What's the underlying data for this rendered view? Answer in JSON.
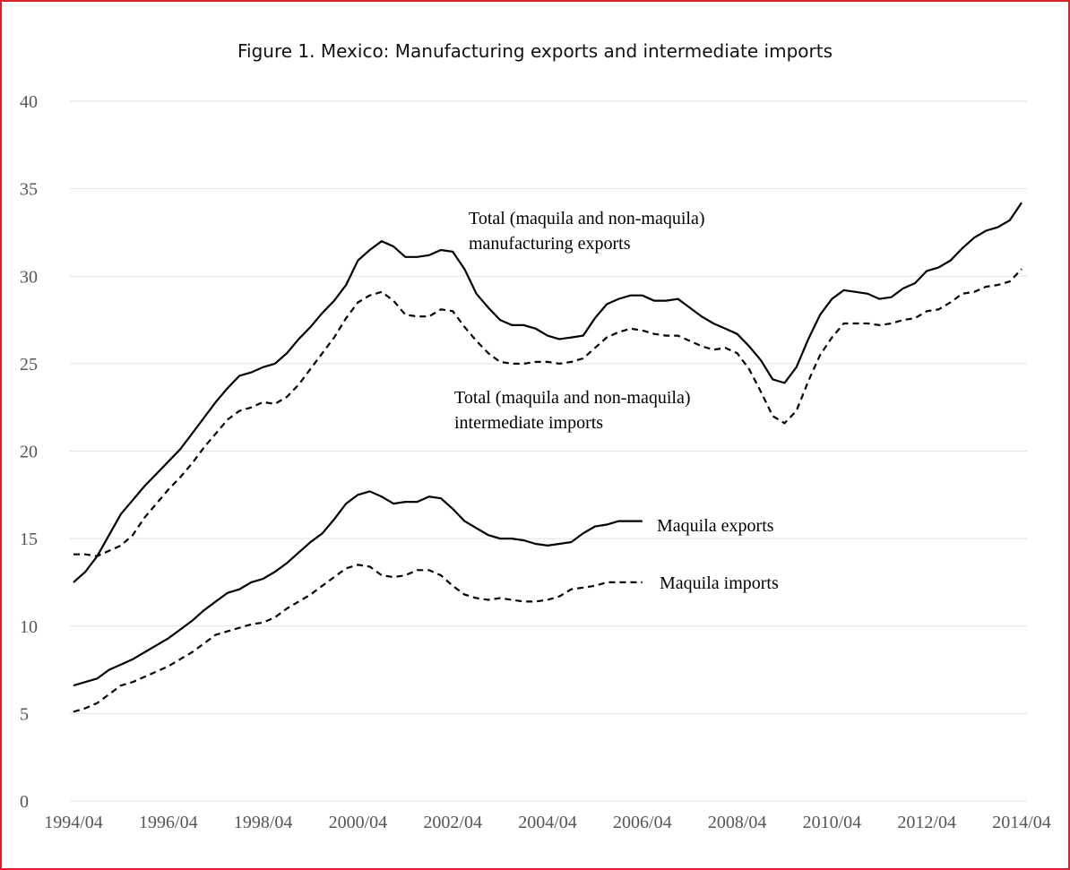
{
  "chart_data": {
    "type": "line",
    "title": "Figure 1. Mexico: Manufacturing exports and intermediate imports",
    "categories": [
      "1994/04",
      null,
      null,
      null,
      null,
      null,
      null,
      null,
      "1996/04",
      null,
      null,
      null,
      null,
      null,
      null,
      null,
      "1998/04",
      null,
      null,
      null,
      null,
      null,
      null,
      null,
      "2000/04",
      null,
      null,
      null,
      null,
      null,
      null,
      null,
      "2002/04",
      null,
      null,
      null,
      null,
      null,
      null,
      null,
      "2004/04",
      null,
      null,
      null,
      null,
      null,
      null,
      null,
      "2006/04",
      null,
      null,
      null,
      null,
      null,
      null,
      null,
      "2008/04",
      null,
      null,
      null,
      null,
      null,
      null,
      null,
      "2010/04",
      null,
      null,
      null,
      null,
      null,
      null,
      null,
      "2012/04",
      null,
      null,
      null,
      null,
      null,
      null,
      null,
      "2014/04"
    ],
    "ylim": [
      0,
      40
    ],
    "yticks": [
      0,
      5,
      10,
      15,
      20,
      25,
      30,
      35,
      40
    ],
    "grid": true,
    "series": [
      {
        "label": [
          "Total (maquila and non-maquila)",
          "manufacturing exports"
        ],
        "color": "#000000",
        "style": "solid",
        "values": [
          12.5,
          13.1,
          14.0,
          15.2,
          16.4,
          17.2,
          18.0,
          18.7,
          19.4,
          20.1,
          21.0,
          21.9,
          22.8,
          23.6,
          24.3,
          24.5,
          24.8,
          25.0,
          25.6,
          26.4,
          27.1,
          27.9,
          28.6,
          29.5,
          30.9,
          31.5,
          32.0,
          31.7,
          31.1,
          31.1,
          31.2,
          31.5,
          31.4,
          30.4,
          29.0,
          28.2,
          27.5,
          27.2,
          27.2,
          27.0,
          26.6,
          26.4,
          26.5,
          26.6,
          27.6,
          28.4,
          28.7,
          28.9,
          28.9,
          28.6,
          28.6,
          28.7,
          28.2,
          27.7,
          27.3,
          27.0,
          26.7,
          26.0,
          25.2,
          24.1,
          23.9,
          24.8,
          26.4,
          27.8,
          28.7,
          29.2,
          29.1,
          29.0,
          28.7,
          28.8,
          29.3,
          29.6,
          30.3,
          30.5,
          30.9,
          31.6,
          32.2,
          32.6,
          32.8,
          33.2,
          34.2
        ]
      },
      {
        "label": [
          "Total (maquila and non-maquila)",
          "intermediate imports"
        ],
        "color": "#000000",
        "style": "dashed",
        "values": [
          14.1,
          14.1,
          14.0,
          14.3,
          14.6,
          15.2,
          16.2,
          17.0,
          17.8,
          18.5,
          19.3,
          20.2,
          21.0,
          21.8,
          22.3,
          22.5,
          22.8,
          22.7,
          23.1,
          23.8,
          24.7,
          25.6,
          26.5,
          27.6,
          28.5,
          28.9,
          29.1,
          28.6,
          27.8,
          27.7,
          27.7,
          28.1,
          28.0,
          27.1,
          26.3,
          25.6,
          25.1,
          25.0,
          25.0,
          25.1,
          25.1,
          25.0,
          25.1,
          25.3,
          25.9,
          26.5,
          26.8,
          27.0,
          26.9,
          26.7,
          26.6,
          26.6,
          26.3,
          26.0,
          25.8,
          25.9,
          25.6,
          24.7,
          23.4,
          22.0,
          21.6,
          22.3,
          24.0,
          25.5,
          26.5,
          27.3,
          27.3,
          27.3,
          27.2,
          27.3,
          27.5,
          27.6,
          28.0,
          28.1,
          28.5,
          29.0,
          29.1,
          29.4,
          29.5,
          29.7,
          30.4
        ]
      },
      {
        "label": [
          "Maquila exports"
        ],
        "color": "#000000",
        "style": "solid",
        "values": [
          6.6,
          6.8,
          7.0,
          7.5,
          7.8,
          8.1,
          8.5,
          8.9,
          9.3,
          9.8,
          10.3,
          10.9,
          11.4,
          11.9,
          12.1,
          12.5,
          12.7,
          13.1,
          13.6,
          14.2,
          14.8,
          15.3,
          16.1,
          17.0,
          17.5,
          17.7,
          17.4,
          17.0,
          17.1,
          17.1,
          17.4,
          17.3,
          16.7,
          16.0,
          15.6,
          15.2,
          15.0,
          15.0,
          14.9,
          14.7,
          14.6,
          14.7,
          14.8,
          15.3,
          15.7,
          15.8,
          16.0,
          16.0,
          16.0,
          null,
          null,
          null,
          null,
          null,
          null,
          null,
          null,
          null,
          null,
          null,
          null,
          null,
          null,
          null,
          null,
          null,
          null,
          null,
          null,
          null,
          null,
          null,
          null,
          null,
          null,
          null,
          null,
          null,
          null,
          null,
          null
        ]
      },
      {
        "label": [
          "Maquila imports"
        ],
        "color": "#000000",
        "style": "dashed",
        "values": [
          5.1,
          5.3,
          5.6,
          6.1,
          6.6,
          6.8,
          7.1,
          7.4,
          7.7,
          8.1,
          8.5,
          9.0,
          9.5,
          9.7,
          9.9,
          10.1,
          10.2,
          10.5,
          11.0,
          11.4,
          11.8,
          12.3,
          12.8,
          13.3,
          13.5,
          13.4,
          12.9,
          12.8,
          12.9,
          13.2,
          13.2,
          12.9,
          12.3,
          11.8,
          11.6,
          11.5,
          11.6,
          11.5,
          11.4,
          11.4,
          11.5,
          11.7,
          12.1,
          12.2,
          12.3,
          12.5,
          12.5,
          12.5,
          12.5,
          null,
          null,
          null,
          null,
          null,
          null,
          null,
          null,
          null,
          null,
          null,
          null,
          null,
          null,
          null,
          null,
          null,
          null,
          null,
          null,
          null,
          null,
          null,
          null,
          null,
          null,
          null,
          null,
          null,
          null,
          null,
          null
        ]
      }
    ]
  }
}
